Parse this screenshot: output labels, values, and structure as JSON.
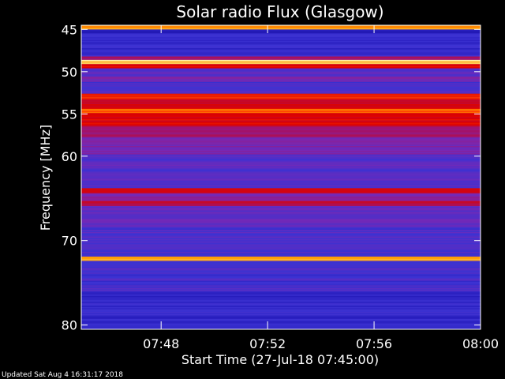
{
  "chart_data": {
    "type": "heatmap",
    "title": "Solar radio Flux (Glasgow)",
    "ylabel": "Frequency [MHz]",
    "xlabel": "Start Time (27-Jul-18 07:45:00)",
    "footer": "Updated Sat Aug  4 16:31:17 2018",
    "x_unit": "time (hh:mm)",
    "xlim": [
      "07:45",
      "08:00"
    ],
    "ylim": [
      44.5,
      80.5
    ],
    "y_inverted": true,
    "x_ticks": [
      "07:48",
      "07:52",
      "07:56",
      "08:00"
    ],
    "y_ticks": [
      45,
      50,
      55,
      60,
      70,
      80
    ],
    "colormap": [
      "#000000",
      "#1e14b4",
      "#3c32d2",
      "#7828b4",
      "#a0146e",
      "#dc0000",
      "#ff3c00",
      "#ffa000",
      "#ffffc8"
    ],
    "bands": [
      {
        "from": 44.5,
        "to": 45.0,
        "level": 0.85
      },
      {
        "from": 45.0,
        "to": 45.5,
        "level": 0.15
      },
      {
        "from": 45.5,
        "to": 48.2,
        "level": 0.22
      },
      {
        "from": 48.2,
        "to": 48.6,
        "level": 0.5
      },
      {
        "from": 48.6,
        "to": 49.1,
        "level": 0.95
      },
      {
        "from": 49.1,
        "to": 49.6,
        "level": 0.62
      },
      {
        "from": 49.6,
        "to": 50.6,
        "level": 0.3
      },
      {
        "from": 50.6,
        "to": 51.2,
        "level": 0.38
      },
      {
        "from": 51.2,
        "to": 52.6,
        "level": 0.28
      },
      {
        "from": 52.6,
        "to": 53.3,
        "level": 0.72
      },
      {
        "from": 53.3,
        "to": 54.4,
        "level": 0.6
      },
      {
        "from": 54.4,
        "to": 54.9,
        "level": 0.8
      },
      {
        "from": 54.9,
        "to": 56.5,
        "level": 0.62
      },
      {
        "from": 56.5,
        "to": 57.8,
        "level": 0.48
      },
      {
        "from": 57.8,
        "to": 59.8,
        "level": 0.38
      },
      {
        "from": 59.8,
        "to": 63.8,
        "level": 0.3
      },
      {
        "from": 63.8,
        "to": 64.4,
        "level": 0.62
      },
      {
        "from": 64.4,
        "to": 65.3,
        "level": 0.4
      },
      {
        "from": 65.3,
        "to": 65.9,
        "level": 0.55
      },
      {
        "from": 65.9,
        "to": 68.3,
        "level": 0.34
      },
      {
        "from": 68.3,
        "to": 71.9,
        "level": 0.28
      },
      {
        "from": 71.9,
        "to": 72.4,
        "level": 0.88
      },
      {
        "from": 72.4,
        "to": 76.0,
        "level": 0.26
      },
      {
        "from": 76.0,
        "to": 77.0,
        "level": 0.18
      },
      {
        "from": 77.0,
        "to": 79.0,
        "level": 0.22
      },
      {
        "from": 79.0,
        "to": 80.5,
        "level": 0.2
      }
    ]
  }
}
